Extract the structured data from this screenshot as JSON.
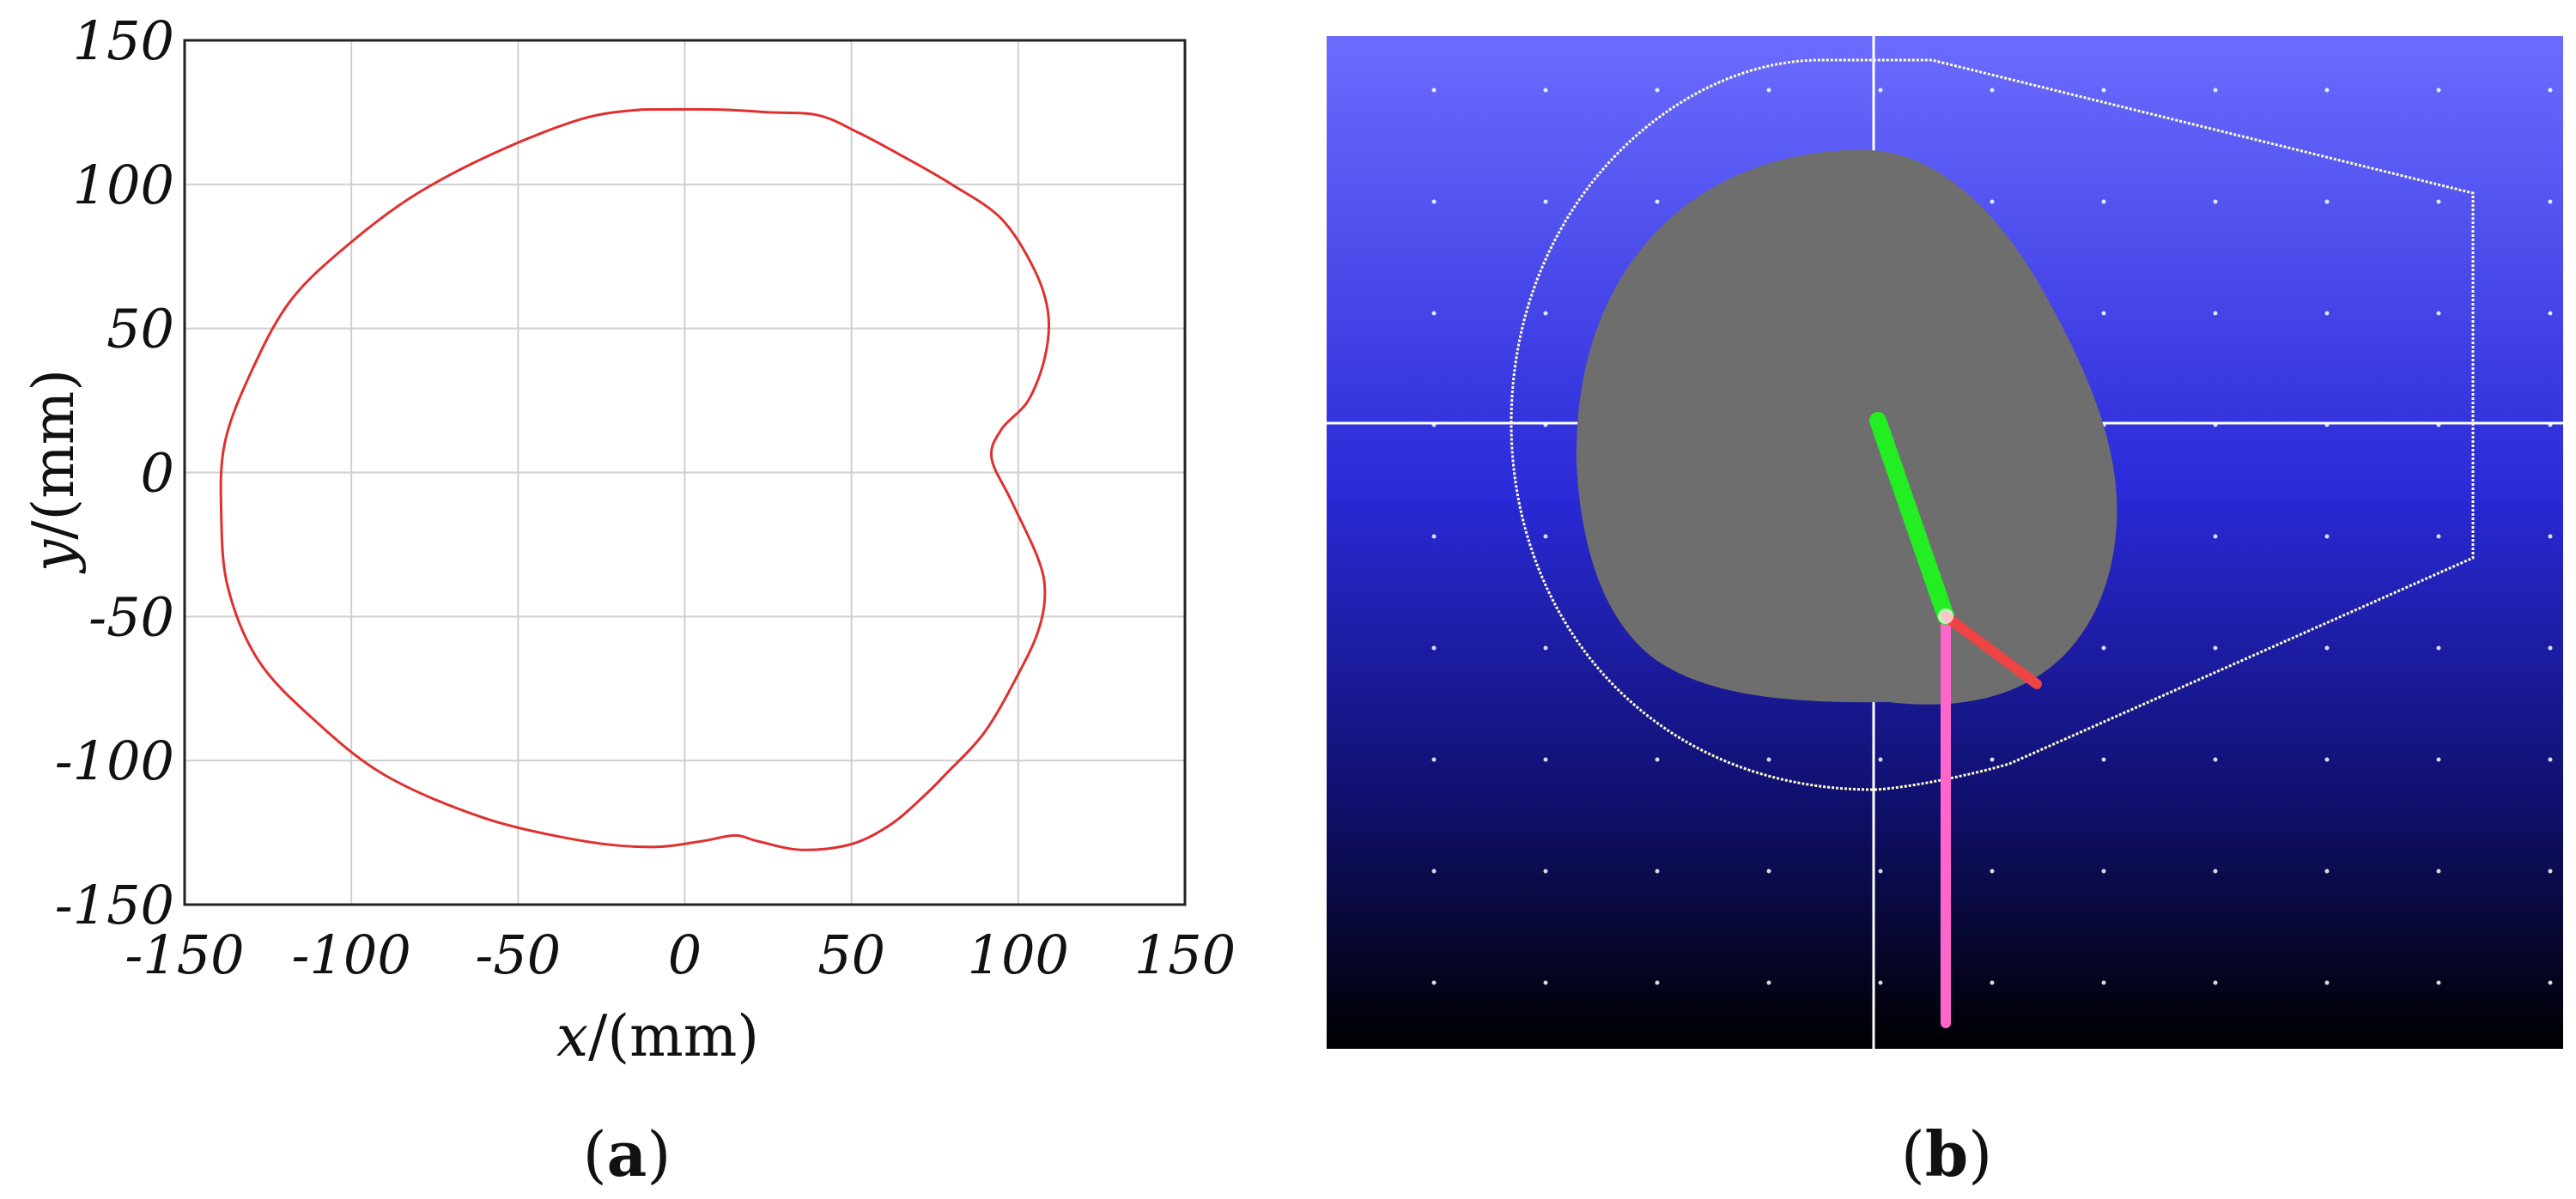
{
  "panel_labels": {
    "a": "a",
    "b": "b"
  },
  "chart_data": {
    "type": "line",
    "title": "",
    "xlabel_var": "x",
    "xlabel_unit": "/(mm)",
    "ylabel_var": "y",
    "ylabel_unit": "/(mm)",
    "xlim": [
      -150,
      150
    ],
    "ylim": [
      -150,
      150
    ],
    "x_ticks": [
      -150,
      -100,
      -50,
      0,
      50,
      100,
      150
    ],
    "y_ticks": [
      150,
      100,
      50,
      0,
      -50,
      -100,
      -150
    ],
    "grid": true,
    "line_color": "#e03030",
    "series": [
      {
        "x": [
          -13,
          -30,
          -55,
          -80,
          -100,
          -118,
          -130,
          -138,
          -139,
          -137,
          -128,
          -112,
          -90,
          -60,
          -30,
          -10,
          5,
          15,
          22,
          35,
          50,
          62,
          72,
          78,
          90,
          100,
          106,
          108,
          106,
          98,
          92,
          95,
          103,
          108,
          109,
          105,
          95,
          80,
          65,
          52,
          40,
          25,
          10,
          -13
        ],
        "y": [
          126,
          123,
          112,
          97,
          80,
          60,
          35,
          10,
          -15,
          -40,
          -65,
          -85,
          -105,
          -120,
          -128,
          -130,
          -128,
          -126,
          -128,
          -131,
          -129,
          -122,
          -112,
          -105,
          -90,
          -70,
          -55,
          -42,
          -30,
          -10,
          5,
          15,
          25,
          40,
          55,
          70,
          88,
          100,
          110,
          118,
          124,
          125,
          126,
          126
        ]
      }
    ]
  },
  "panel_b": {
    "description_colors": {
      "background_top": "#6666ff",
      "background_bottom": "#000000",
      "blob": "#6e6e6e",
      "link_green": "#22dd22",
      "link_red": "#ee4444",
      "link_pink": "#ff66cc",
      "boundary": "#ffffcc",
      "crosshair": "#ffffff"
    }
  }
}
